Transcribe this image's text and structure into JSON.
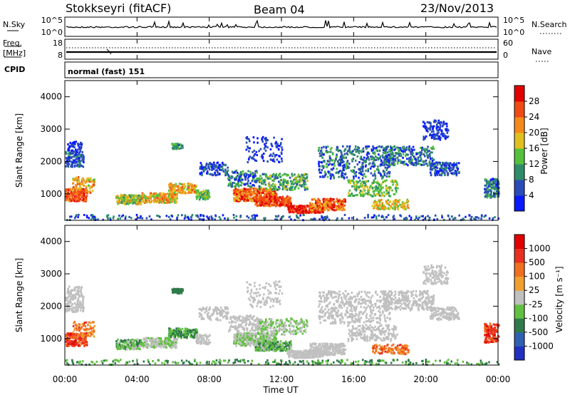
{
  "header": {
    "station": "Stokkseyri (fitACF)",
    "beam": "Beam 04",
    "date": "23/Nov/2013"
  },
  "status_panels": {
    "nsky_label": "N.Sky",
    "nsky_ticks": [
      "10^5",
      "10^0"
    ],
    "nsearch_label": "N.Search",
    "nsearch_ticks": [
      "10^5",
      "10^0"
    ],
    "freq_label": "Freq.",
    "freq_unit": "[MHz]",
    "freq_ticks": [
      "18",
      "8"
    ],
    "nave_label": "Nave",
    "nave_ticks": [
      "60",
      "0"
    ],
    "cpid_label": "CPID",
    "cpid_value": "normal (fast) 151"
  },
  "chart_data": [
    {
      "type": "heatmap",
      "name": "power",
      "ylabel": "Slant Range [km]",
      "xlabel": "",
      "xlim": [
        0,
        24
      ],
      "ylim": [
        180,
        4500
      ],
      "y_ticks": [
        "1000",
        "2000",
        "3000",
        "4000"
      ],
      "colorbar_label": "Power [dB]",
      "colorbar_ticks": [
        "4",
        "8",
        "12",
        "16",
        "20",
        "24",
        "28"
      ],
      "colorbar_colors": [
        "#0a1aff",
        "#2a4cb8",
        "#2f8c6a",
        "#55c03c",
        "#e0c020",
        "#f58a1a",
        "#f04a14",
        "#e00000"
      ]
    },
    {
      "type": "heatmap",
      "name": "velocity",
      "ylabel": "Slant Range [km]",
      "xlabel": "Time UT",
      "xlim": [
        0,
        24
      ],
      "ylim": [
        180,
        4500
      ],
      "x_ticks": [
        "00:00",
        "04:00",
        "08:00",
        "12:00",
        "16:00",
        "20:00",
        "00:00"
      ],
      "y_ticks": [
        "1000",
        "2000",
        "3000",
        "4000"
      ],
      "colorbar_label": "Velocity [m s⁻¹]",
      "colorbar_ticks": [
        "1000",
        "500",
        "100",
        "25",
        "-25",
        "-100",
        "-500",
        "-1000"
      ],
      "colorbar_colors": [
        "#2030c0",
        "#3060b0",
        "#2f7a4a",
        "#60c040",
        "#c0c0c0",
        "#f0a030",
        "#f07020",
        "#e83020",
        "#e00000"
      ]
    }
  ]
}
